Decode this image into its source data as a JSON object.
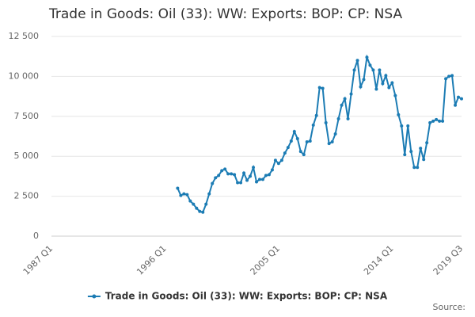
{
  "chart_data": {
    "type": "line",
    "title": "Trade in Goods: Oil (33): WW: Exports: BOP: CP: NSA",
    "categories": [
      "1987 Q1",
      null,
      null,
      null,
      null,
      null,
      null,
      null,
      null,
      null,
      null,
      null,
      null,
      null,
      null,
      null,
      null,
      null,
      null,
      null,
      null,
      null,
      null,
      null,
      null,
      null,
      null,
      null,
      null,
      null,
      null,
      null,
      null,
      null,
      null,
      null,
      "1996 Q1",
      null,
      null,
      null,
      null,
      null,
      null,
      null,
      null,
      null,
      null,
      null,
      null,
      null,
      null,
      null,
      null,
      null,
      null,
      null,
      null,
      null,
      null,
      null,
      null,
      null,
      null,
      null,
      null,
      null,
      null,
      null,
      null,
      null,
      null,
      null,
      "2005 Q1",
      null,
      null,
      null,
      null,
      null,
      null,
      null,
      null,
      null,
      null,
      null,
      null,
      null,
      null,
      null,
      null,
      null,
      null,
      null,
      null,
      null,
      null,
      null,
      null,
      null,
      null,
      null,
      null,
      null,
      null,
      null,
      null,
      null,
      null,
      null,
      "2014 Q1",
      null,
      null,
      null,
      null,
      null,
      null,
      null,
      null,
      null,
      null,
      null,
      null,
      null,
      null,
      null,
      null,
      null,
      null,
      null,
      null,
      null,
      "2019 Q3"
    ],
    "series": [
      {
        "name": "Trade in Goods: Oil (33): WW: Exports: BOP: CP: NSA",
        "color": "#1c7cb4",
        "values": [
          null,
          null,
          null,
          null,
          null,
          null,
          null,
          null,
          null,
          null,
          null,
          null,
          null,
          null,
          null,
          null,
          null,
          null,
          null,
          null,
          null,
          null,
          null,
          null,
          null,
          null,
          null,
          null,
          null,
          null,
          null,
          null,
          null,
          null,
          null,
          null,
          null,
          null,
          null,
          null,
          3000,
          2550,
          2650,
          2600,
          2200,
          2000,
          1750,
          1550,
          1500,
          2000,
          2650,
          3300,
          3650,
          3800,
          4100,
          4200,
          3900,
          3900,
          3850,
          3350,
          3350,
          3950,
          3500,
          3750,
          4300,
          3400,
          3550,
          3550,
          3800,
          3850,
          4150,
          4750,
          4550,
          4750,
          5200,
          5550,
          5950,
          6550,
          6100,
          5300,
          5100,
          5900,
          5950,
          6950,
          7550,
          9300,
          9250,
          7100,
          5800,
          5900,
          6400,
          7350,
          8200,
          8600,
          7350,
          8900,
          10400,
          11000,
          9350,
          9800,
          11200,
          10700,
          10400,
          9200,
          10400,
          9550,
          10050,
          9300,
          9600,
          8800,
          7600,
          6900,
          5100,
          6900,
          5300,
          4300,
          4300,
          5500,
          4800,
          5850,
          7100,
          7200,
          7300,
          7200,
          7200,
          9850,
          10000,
          10050,
          8200,
          8700,
          8600
        ]
      }
    ],
    "ylim": [
      0,
      12500
    ],
    "yticks": [
      0,
      {
        "value": 2500,
        "label": "2 500"
      },
      {
        "value": 5000,
        "label": "5 000"
      },
      {
        "value": 7500,
        "label": "7 500"
      },
      {
        "value": 10000,
        "label": "10 000"
      },
      {
        "value": 12500,
        "label": "12 500"
      }
    ],
    "grid": true,
    "legend": "bottom",
    "source": "Source:"
  }
}
